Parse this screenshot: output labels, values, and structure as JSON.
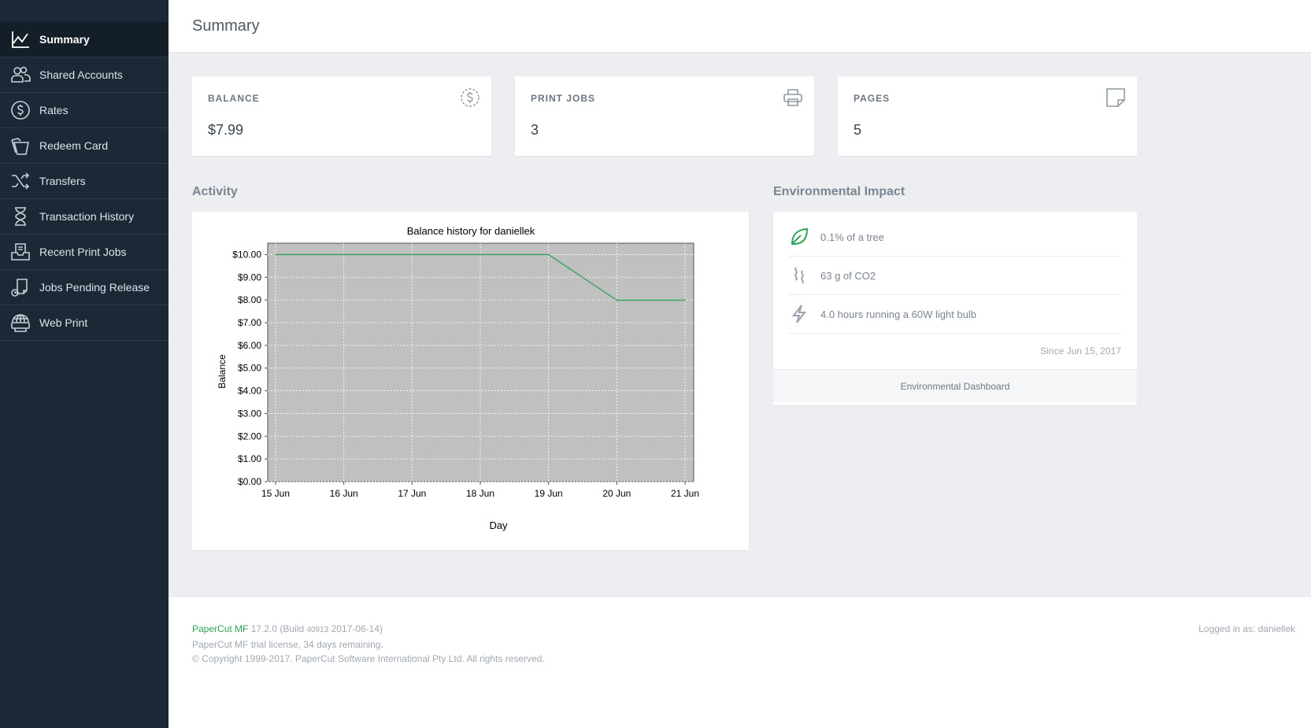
{
  "sidebar": {
    "items": [
      {
        "label": "Summary",
        "icon": "line-chart-icon",
        "active": true
      },
      {
        "label": "Shared Accounts",
        "icon": "users-icon"
      },
      {
        "label": "Rates",
        "icon": "dollar-circle-icon"
      },
      {
        "label": "Redeem Card",
        "icon": "cards-icon"
      },
      {
        "label": "Transfers",
        "icon": "shuffle-icon"
      },
      {
        "label": "Transaction History",
        "icon": "hourglass-icon"
      },
      {
        "label": "Recent Print Jobs",
        "icon": "print-tray-icon"
      },
      {
        "label": "Jobs Pending Release",
        "icon": "pending-release-icon"
      },
      {
        "label": "Web Print",
        "icon": "globe-printer-icon"
      }
    ]
  },
  "header": {
    "title": "Summary"
  },
  "stats": {
    "balance": {
      "label": "BALANCE",
      "value": "$7.99"
    },
    "print_jobs": {
      "label": "PRINT JOBS",
      "value": "3"
    },
    "pages": {
      "label": "PAGES",
      "value": "5"
    }
  },
  "activity": {
    "title": "Activity"
  },
  "environment": {
    "title": "Environmental Impact",
    "items": [
      {
        "text": "0.1% of a tree",
        "icon": "leaf-icon"
      },
      {
        "text": "63 g of CO2",
        "icon": "smoke-icon"
      },
      {
        "text": "4.0 hours running a 60W light bulb",
        "icon": "lightning-icon"
      }
    ],
    "since": "Since Jun 15, 2017",
    "dashboard_link": "Environmental Dashboard"
  },
  "footer": {
    "brand": "PaperCut MF",
    "version": "17.2.0 (Build",
    "build_number": "40913",
    "build_date": "2017-06-14)",
    "license": "PaperCut MF trial license, 34 days remaining.",
    "copyright": "© Copyright 1999-2017. PaperCut Software International Pty Ltd. All rights reserved.",
    "logged_in_label": "Logged in as:",
    "username": "daniellek"
  },
  "colors": {
    "accent": "#2fa35a",
    "sidebar_bg": "#1b2836",
    "plot_bg": "#c0c0c0"
  },
  "chart_data": {
    "type": "line",
    "title": "Balance history for daniellek",
    "xlabel": "Day",
    "ylabel": "Balance",
    "categories": [
      "15 Jun",
      "16 Jun",
      "17 Jun",
      "18 Jun",
      "19 Jun",
      "20 Jun",
      "21 Jun"
    ],
    "series": [
      {
        "values": [
          10.0,
          10.0,
          10.0,
          10.0,
          10.0,
          7.99,
          7.99
        ],
        "color": "#2fa35a"
      }
    ],
    "ylim": [
      0,
      10.5
    ],
    "yticks": [
      "$0.00",
      "$1.00",
      "$2.00",
      "$3.00",
      "$4.00",
      "$5.00",
      "$6.00",
      "$7.00",
      "$8.00",
      "$9.00",
      "$10.00"
    ],
    "grid": true
  }
}
